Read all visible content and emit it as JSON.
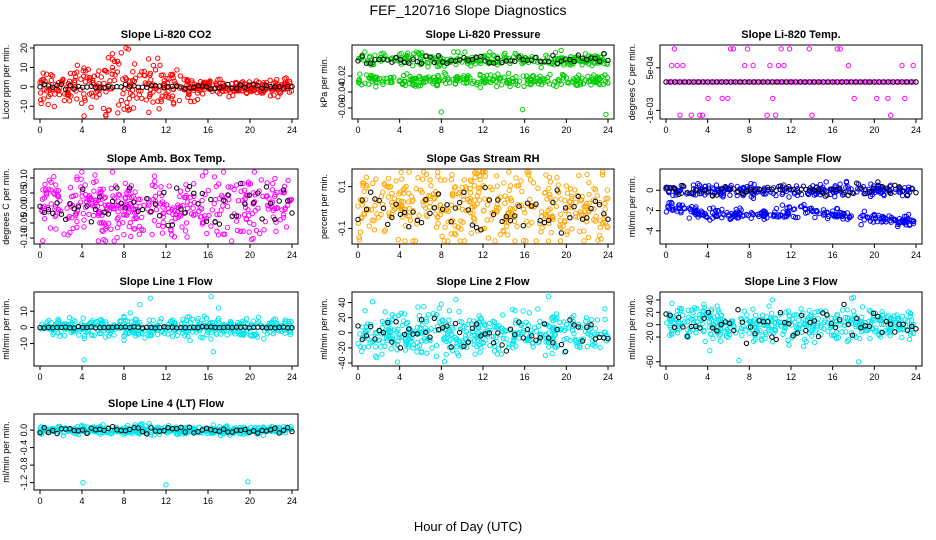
{
  "figure": {
    "title": "FEF_120716  Slope Diagnostics",
    "xlabel": "Hour of Day (UTC)"
  },
  "chart_data": [
    {
      "type": "scatter",
      "title": "Slope Li-820 CO2",
      "ylabel": "Licor ppm per min.",
      "xlim": [
        0,
        24
      ],
      "ylim": [
        -15,
        20
      ],
      "xticks": [
        "0",
        "4",
        "8",
        "12",
        "16",
        "20",
        "24"
      ],
      "yticks": [
        {
          "v": -10,
          "label": "-10"
        },
        {
          "v": 0,
          "label": "0"
        },
        {
          "v": 10,
          "label": "10"
        },
        {
          "v": 20,
          "label": "20"
        }
      ],
      "series": [
        {
          "color": "#ff0000",
          "profile": [
            [
              0,
              4
            ],
            [
              3,
              5
            ],
            [
              5,
              6
            ],
            [
              7,
              8
            ],
            [
              9,
              7
            ],
            [
              12,
              6
            ],
            [
              14,
              4
            ],
            [
              16,
              2
            ],
            [
              20,
              2
            ],
            [
              24,
              2
            ]
          ],
          "spikes": [
            [
              8.2,
              20
            ],
            [
              6.5,
              15
            ],
            [
              4.6,
              9
            ],
            [
              2.9,
              7
            ],
            [
              10.8,
              11
            ],
            [
              8.4,
              -12
            ],
            [
              4.2,
              -15
            ],
            [
              12.5,
              -6
            ]
          ]
        },
        {
          "color": "#000000",
          "profile": [
            [
              0,
              0.6
            ],
            [
              24,
              0.6
            ]
          ]
        }
      ]
    },
    {
      "type": "scatter",
      "title": "Slope Li-820 Pressure",
      "ylabel": "kPa per min.",
      "xlim": [
        0,
        24
      ],
      "ylim": [
        -0.07,
        0.015
      ],
      "xticks": [
        "0",
        "4",
        "8",
        "12",
        "16",
        "20",
        "24"
      ],
      "yticks": [
        {
          "v": -0.06,
          "label": "-0.06"
        },
        {
          "v": -0.04,
          "label": "-0.04"
        },
        {
          "v": -0.02,
          "label": "-0.02"
        }
      ],
      "series": [
        {
          "color": "#00cc00",
          "bands": [
            {
              "center": 0.0,
              "spread": 0.004
            },
            {
              "center": -0.025,
              "spread": 0.004
            }
          ],
          "spikes": [
            [
              8.0,
              -0.065
            ],
            [
              15.8,
              -0.062
            ],
            [
              23.8,
              -0.068
            ],
            [
              19.5,
              0.012
            ],
            [
              9.2,
              0.01
            ]
          ]
        },
        {
          "color": "#000000",
          "profile": [
            [
              0,
              0.0
            ],
            [
              24,
              0.0
            ]
          ],
          "spread": 0.003
        }
      ]
    },
    {
      "type": "scatter",
      "title": "Slope Li-820 Temp.",
      "ylabel": "degrees C per min.",
      "xlim": [
        0,
        24
      ],
      "ylim": [
        -0.0012,
        0.0012
      ],
      "xticks": [
        "0",
        "4",
        "8",
        "12",
        "16",
        "20",
        "24"
      ],
      "yticks": [
        {
          "v": -0.001,
          "label": "-1e-03"
        },
        {
          "v": 0.0005,
          "label": "5e-04"
        }
      ],
      "series": [
        {
          "color": "#ff00ff",
          "levels": [
            -0.00117,
            -0.00058,
            0.0,
            0.00058,
            0.00117
          ]
        },
        {
          "color": "#000000",
          "levels": [
            0.0
          ]
        }
      ]
    },
    {
      "type": "scatter",
      "title": "Slope Amb. Box Temp.",
      "ylabel": "degrees C per min.",
      "xlim": [
        0,
        24
      ],
      "ylim": [
        -0.11,
        0.12
      ],
      "xticks": [
        "0",
        "4",
        "8",
        "12",
        "16",
        "20",
        "24"
      ],
      "yticks": [
        {
          "v": -0.1,
          "label": "-0.10"
        },
        {
          "v": -0.05,
          "label": "-0.05"
        },
        {
          "v": 0.0,
          "label": "0.00"
        },
        {
          "v": 0.05,
          "label": "0.05"
        },
        {
          "v": 0.1,
          "label": "0.10"
        }
      ],
      "series": [
        {
          "color": "#ff00ff",
          "profile": [
            [
              0,
              0.01
            ],
            [
              12,
              0.0
            ],
            [
              24,
              0.01
            ]
          ],
          "spread": 0.05
        },
        {
          "color": "#000000",
          "profile": [
            [
              0,
              0.0
            ],
            [
              24,
              0.0
            ]
          ],
          "spread": 0.04
        }
      ]
    },
    {
      "type": "scatter",
      "title": "Slope Gas Stream RH",
      "ylabel": "percent per min.",
      "xlim": [
        0,
        24
      ],
      "ylim": [
        -0.16,
        0.17
      ],
      "xticks": [
        "0",
        "4",
        "8",
        "12",
        "16",
        "20",
        "24"
      ],
      "yticks": [
        {
          "v": -0.1,
          "label": "-0.1"
        },
        {
          "v": 0.1,
          "label": "0.1"
        }
      ],
      "series": [
        {
          "color": "#ffa500",
          "profile": [
            [
              0,
              0.02
            ],
            [
              24,
              0.0
            ]
          ],
          "spread": 0.09
        },
        {
          "color": "#000000",
          "profile": [
            [
              0,
              0.0
            ],
            [
              24,
              0.0
            ]
          ],
          "spread": 0.06
        }
      ]
    },
    {
      "type": "scatter",
      "title": "Slope Sample Flow",
      "ylabel": "ml/min per min.",
      "xlim": [
        0,
        24
      ],
      "ylim": [
        -5,
        1.8
      ],
      "xticks": [
        "0",
        "4",
        "8",
        "12",
        "16",
        "20",
        "24"
      ],
      "yticks": [
        {
          "v": -4,
          "label": "-4"
        },
        {
          "v": -2,
          "label": "-2"
        },
        {
          "v": 0,
          "label": "0"
        }
      ],
      "series": [
        {
          "color": "#0000ff",
          "bands": [
            {
              "profile": [
                [
                  0,
                  0.0
                ],
                [
                  24,
                  0.0
                ]
              ],
              "spread": 0.3
            },
            {
              "profile": [
                [
                  0,
                  -1.5
                ],
                [
                  4,
                  -2.5
                ],
                [
                  10,
                  -2.3
                ],
                [
                  14,
                  -2.0
                ],
                [
                  18,
                  -2.7
                ],
                [
                  24,
                  -3.0
                ]
              ],
              "spread": 0.3
            }
          ]
        },
        {
          "color": "#000000",
          "profile": [
            [
              0,
              0.0
            ],
            [
              24,
              0.0
            ]
          ],
          "spread": 0.3
        }
      ]
    },
    {
      "type": "scatter",
      "title": "Slope Line 1 Flow",
      "ylabel": "ml/min per min.",
      "xlim": [
        0,
        24
      ],
      "ylim": [
        -22,
        20
      ],
      "xticks": [
        "0",
        "4",
        "8",
        "12",
        "16",
        "20",
        "24"
      ],
      "yticks": [
        {
          "v": -10,
          "label": "-10"
        },
        {
          "v": 0,
          "label": "0"
        },
        {
          "v": 10,
          "label": "10"
        }
      ],
      "series": [
        {
          "color": "#00e5ee",
          "profile": [
            [
              0,
              0.0
            ],
            [
              24,
              0.0
            ]
          ],
          "spread": 3,
          "spikes": [
            [
              4.2,
              -20
            ],
            [
              9.5,
              14
            ],
            [
              10.5,
              18
            ],
            [
              16.3,
              19
            ],
            [
              17.0,
              12
            ],
            [
              8.0,
              -8
            ],
            [
              16.5,
              -15
            ]
          ]
        },
        {
          "color": "#000000",
          "profile": [
            [
              0,
              0.0
            ],
            [
              24,
              0.0
            ]
          ],
          "spread": 0.2
        }
      ]
    },
    {
      "type": "scatter",
      "title": "Slope Line 2 Flow",
      "ylabel": "ml/min per min.",
      "xlim": [
        0,
        24
      ],
      "ylim": [
        -40,
        50
      ],
      "xticks": [
        "0",
        "4",
        "8",
        "12",
        "16",
        "20",
        "24"
      ],
      "yticks": [
        {
          "v": -40,
          "label": "-40"
        },
        {
          "v": -20,
          "label": "-20"
        },
        {
          "v": 0,
          "label": "0"
        },
        {
          "v": 20,
          "label": "20"
        },
        {
          "v": 40,
          "label": "40"
        }
      ],
      "series": [
        {
          "color": "#00e5ee",
          "profile": [
            [
              0,
              0.0
            ],
            [
              24,
              0.0
            ]
          ],
          "spread": 14,
          "spikes": [
            [
              8.3,
              -38
            ],
            [
              8.0,
              38
            ],
            [
              9.4,
              44
            ],
            [
              18.3,
              48
            ],
            [
              18.0,
              -30
            ]
          ]
        },
        {
          "color": "#000000",
          "profile": [
            [
              0,
              0.0
            ],
            [
              24,
              0.0
            ]
          ],
          "spread": 10
        }
      ]
    },
    {
      "type": "scatter",
      "title": "Slope Line 3 Flow",
      "ylabel": "ml/min per min.",
      "xlim": [
        0,
        24
      ],
      "ylim": [
        -62,
        48
      ],
      "xticks": [
        "0",
        "4",
        "8",
        "12",
        "16",
        "20",
        "24"
      ],
      "yticks": [
        {
          "v": -60,
          "label": "-60"
        },
        {
          "v": -20,
          "label": "-20"
        },
        {
          "v": 0,
          "label": "0"
        },
        {
          "v": 20,
          "label": "20"
        },
        {
          "v": 40,
          "label": "40"
        }
      ],
      "series": [
        {
          "color": "#00e5ee",
          "profile": [
            [
              0,
              0.0
            ],
            [
              24,
              0.0
            ]
          ],
          "spread": 14,
          "spikes": [
            [
              4.2,
              -42
            ],
            [
              7.0,
              -58
            ],
            [
              10.2,
              40
            ],
            [
              18.0,
              44
            ],
            [
              18.5,
              -60
            ]
          ]
        },
        {
          "color": "#000000",
          "profile": [
            [
              0,
              0.0
            ],
            [
              24,
              0.0
            ]
          ],
          "spread": 12
        }
      ]
    },
    {
      "type": "scatter",
      "title": "Slope Line 4 (LT) Flow",
      "ylabel": "ml/min per min.",
      "xlim": [
        0,
        24
      ],
      "ylim": [
        -1.3,
        0.3
      ],
      "xticks": [
        "0",
        "4",
        "8",
        "12",
        "16",
        "20",
        "24"
      ],
      "yticks": [
        {
          "v": -1.2,
          "label": "-1.2"
        },
        {
          "v": -0.8,
          "label": "-0.8"
        },
        {
          "v": -0.4,
          "label": "-0.4"
        },
        {
          "v": 0.0,
          "label": "0.0"
        }
      ],
      "series": [
        {
          "color": "#00e5ee",
          "profile": [
            [
              0,
              0.0
            ],
            [
              24,
              0.0
            ]
          ],
          "spread": 0.05,
          "spikes": [
            [
              4.1,
              -1.2
            ],
            [
              12.0,
              -1.25
            ],
            [
              19.8,
              -1.18
            ],
            [
              10.4,
              0.15
            ],
            [
              16.5,
              0.12
            ]
          ]
        },
        {
          "color": "#000000",
          "profile": [
            [
              0,
              0.0
            ],
            [
              24,
              0.0
            ]
          ],
          "spread": 0.04
        }
      ]
    }
  ]
}
